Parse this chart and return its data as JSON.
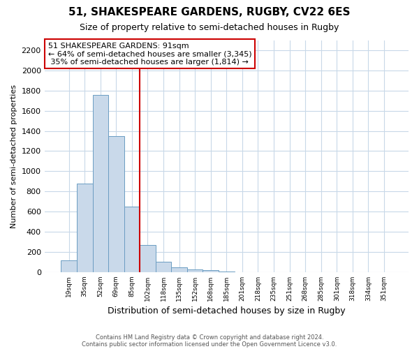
{
  "title": "51, SHAKESPEARE GARDENS, RUGBY, CV22 6ES",
  "subtitle": "Size of property relative to semi-detached houses in Rugby",
  "xlabel": "Distribution of semi-detached houses by size in Rugby",
  "ylabel": "Number of semi-detached properties",
  "bar_labels": [
    "19sqm",
    "35sqm",
    "52sqm",
    "69sqm",
    "85sqm",
    "102sqm",
    "118sqm",
    "135sqm",
    "152sqm",
    "168sqm",
    "185sqm",
    "201sqm",
    "218sqm",
    "235sqm",
    "251sqm",
    "268sqm",
    "285sqm",
    "301sqm",
    "318sqm",
    "334sqm",
    "351sqm"
  ],
  "bar_heights": [
    120,
    875,
    1760,
    1350,
    650,
    270,
    100,
    50,
    30,
    20,
    5,
    0,
    0,
    0,
    0,
    0,
    0,
    0,
    0,
    0,
    0
  ],
  "bar_color": "#c9d9ea",
  "bar_edge_color": "#6b9dc2",
  "annotation_title": "51 SHAKESPEARE GARDENS: 91sqm",
  "annotation_line1": "← 64% of semi-detached houses are smaller (3,345)",
  "annotation_line2": " 35% of semi-detached houses are larger (1,814) →",
  "annotation_box_color": "#ffffff",
  "annotation_box_edge": "#cc0000",
  "vline_color": "#cc0000",
  "vline_x_index": 4.5,
  "ylim": [
    0,
    2300
  ],
  "yticks": [
    0,
    200,
    400,
    600,
    800,
    1000,
    1200,
    1400,
    1600,
    1800,
    2000,
    2200
  ],
  "footer1": "Contains HM Land Registry data © Crown copyright and database right 2024.",
  "footer2": "Contains public sector information licensed under the Open Government Licence v3.0.",
  "background_color": "#ffffff",
  "plot_bg_color": "#ffffff",
  "grid_color": "#c8d8e8"
}
